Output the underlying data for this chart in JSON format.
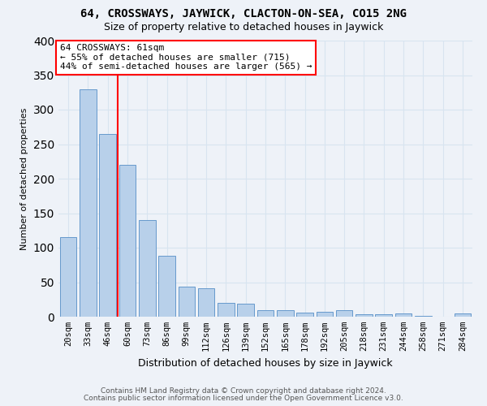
{
  "title": "64, CROSSWAYS, JAYWICK, CLACTON-ON-SEA, CO15 2NG",
  "subtitle": "Size of property relative to detached houses in Jaywick",
  "xlabel": "Distribution of detached houses by size in Jaywick",
  "ylabel": "Number of detached properties",
  "categories": [
    "20sqm",
    "33sqm",
    "46sqm",
    "60sqm",
    "73sqm",
    "86sqm",
    "99sqm",
    "112sqm",
    "126sqm",
    "139sqm",
    "152sqm",
    "165sqm",
    "178sqm",
    "192sqm",
    "205sqm",
    "218sqm",
    "231sqm",
    "244sqm",
    "258sqm",
    "271sqm",
    "284sqm"
  ],
  "values": [
    115,
    330,
    265,
    220,
    140,
    88,
    44,
    41,
    20,
    19,
    10,
    9,
    6,
    7,
    9,
    4,
    4,
    5,
    1,
    0,
    5
  ],
  "bar_color": "#b8d0ea",
  "bar_edge_color": "#6699cc",
  "vline_position": 2.5,
  "vline_color": "red",
  "annotation_line1": "64 CROSSWAYS: 61sqm",
  "annotation_line2": "← 55% of detached houses are smaller (715)",
  "annotation_line3": "44% of semi-detached houses are larger (565) →",
  "annotation_box_facecolor": "white",
  "annotation_box_edgecolor": "red",
  "footer_line1": "Contains HM Land Registry data © Crown copyright and database right 2024.",
  "footer_line2": "Contains public sector information licensed under the Open Government Licence v3.0.",
  "bg_color": "#eef2f8",
  "grid_color": "#d8e4f0",
  "ylim_max": 400,
  "yticks": [
    0,
    50,
    100,
    150,
    200,
    250,
    300,
    350,
    400
  ],
  "title_fontsize": 10,
  "subtitle_fontsize": 9,
  "ylabel_fontsize": 8,
  "xlabel_fontsize": 9,
  "tick_fontsize": 7.5,
  "annot_fontsize": 8,
  "footer_fontsize": 6.5
}
